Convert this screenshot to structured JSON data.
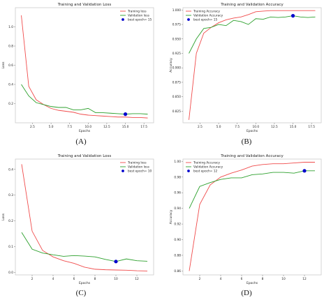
{
  "panel_labels": [
    "(A)",
    "(B)",
    "(C)",
    "(D)"
  ],
  "colors": {
    "train": "#f04b4b",
    "val": "#2ca02c",
    "best": "#0000cc",
    "frame": "#cccccc"
  },
  "chart_data": [
    {
      "type": "line",
      "title": "Training and Validation Loss",
      "xlabel": "Epochs",
      "ylabel": "Loss",
      "xlim": [
        0.2,
        18.8
      ],
      "ylim": [
        0.0,
        1.2
      ],
      "xticks": [
        2.5,
        5.0,
        7.5,
        10.0,
        12.5,
        15.0,
        17.5
      ],
      "xtick_labels": [
        "2.5",
        "5.0",
        "7.5",
        "10.0",
        "12.5",
        "15.0",
        "17.5"
      ],
      "yticks": [
        0.2,
        0.4,
        0.6,
        0.8,
        1.0
      ],
      "ytick_labels": [
        "0.2",
        "0.4",
        "0.6",
        "0.8",
        "1.0"
      ],
      "legend_position": "top-right",
      "x": [
        1,
        2,
        3,
        4,
        5,
        6,
        7,
        8,
        9,
        10,
        11,
        12,
        13,
        14,
        15,
        16,
        17,
        18
      ],
      "series": [
        {
          "name": "Training loss",
          "values": [
            1.12,
            0.38,
            0.24,
            0.19,
            0.15,
            0.13,
            0.12,
            0.11,
            0.09,
            0.08,
            0.075,
            0.07,
            0.065,
            0.06,
            0.06,
            0.055,
            0.055,
            0.05
          ]
        },
        {
          "name": "Validation loss",
          "values": [
            0.4,
            0.28,
            0.21,
            0.19,
            0.17,
            0.16,
            0.16,
            0.135,
            0.135,
            0.15,
            0.105,
            0.105,
            0.1,
            0.095,
            0.09,
            0.095,
            0.095,
            0.09
          ]
        }
      ],
      "best": {
        "label": "best epoch= 15",
        "x": 15,
        "y": 0.09
      }
    },
    {
      "type": "line",
      "title": "Training and Validation Accuracy",
      "xlabel": "Epochs",
      "ylabel": "Accuracy",
      "xlim": [
        0.2,
        18.8
      ],
      "ylim": [
        0.805,
        1.004
      ],
      "xticks": [
        2.5,
        5.0,
        7.5,
        10.0,
        12.5,
        15.0,
        17.5
      ],
      "xtick_labels": [
        "2.5",
        "5.0",
        "7.5",
        "10.0",
        "12.5",
        "15.0",
        "17.5"
      ],
      "yticks": [
        0.825,
        0.85,
        0.875,
        0.9,
        0.925,
        0.95,
        0.975,
        1.0
      ],
      "ytick_labels": [
        "0.825",
        "0.850",
        "0.875",
        "0.900",
        "0.925",
        "0.950",
        "0.975",
        "1.000"
      ],
      "legend_position": "top-left",
      "x": [
        1,
        2,
        3,
        4,
        5,
        6,
        7,
        8,
        9,
        10,
        11,
        12,
        13,
        14,
        15,
        16,
        17,
        18
      ],
      "series": [
        {
          "name": "Training Accuracy",
          "values": [
            0.81,
            0.925,
            0.96,
            0.97,
            0.978,
            0.983,
            0.986,
            0.988,
            0.992,
            0.997,
            0.998,
            0.999,
            0.999,
            0.999,
            0.999,
            0.999,
            0.999,
            0.999
          ]
        },
        {
          "name": "Validation Accuracy",
          "values": [
            0.925,
            0.95,
            0.968,
            0.97,
            0.975,
            0.973,
            0.982,
            0.98,
            0.975,
            0.985,
            0.984,
            0.988,
            0.987,
            0.988,
            0.99,
            0.988,
            0.987,
            0.988
          ]
        }
      ],
      "best": {
        "label": "best epoch= 15",
        "x": 15,
        "y": 0.99
      }
    },
    {
      "type": "line",
      "title": "Training and Validation Loss",
      "xlabel": "Epochs",
      "ylabel": "Loss",
      "xlim": [
        0.4,
        13.6
      ],
      "ylim": [
        -0.01,
        0.44
      ],
      "xticks": [
        2,
        4,
        6,
        8,
        10,
        12
      ],
      "xtick_labels": [
        "2",
        "4",
        "6",
        "8",
        "10",
        "12"
      ],
      "yticks": [
        0.0,
        0.1,
        0.2,
        0.3,
        0.4
      ],
      "ytick_labels": [
        "0.0",
        "0.1",
        "0.2",
        "0.3",
        "0.4"
      ],
      "legend_position": "top-right",
      "x": [
        1,
        2,
        3,
        4,
        5,
        6,
        7,
        8,
        9,
        10,
        11,
        12,
        13
      ],
      "series": [
        {
          "name": "Training loss",
          "values": [
            0.42,
            0.16,
            0.085,
            0.06,
            0.045,
            0.035,
            0.02,
            0.012,
            0.01,
            0.009,
            0.008,
            0.006,
            0.005
          ]
        },
        {
          "name": "Validation loss",
          "values": [
            0.155,
            0.09,
            0.075,
            0.068,
            0.062,
            0.065,
            0.063,
            0.06,
            0.05,
            0.042,
            0.052,
            0.045,
            0.043
          ]
        }
      ],
      "best": {
        "label": "best epoch= 10",
        "x": 10,
        "y": 0.042
      }
    },
    {
      "type": "line",
      "title": "Training and Validation Accuracy",
      "xlabel": "Epochs",
      "ylabel": "Accuracy",
      "xlim": [
        0.4,
        13.6
      ],
      "ylim": [
        0.855,
        1.003
      ],
      "xticks": [
        2,
        4,
        6,
        8,
        10,
        12
      ],
      "xtick_labels": [
        "2",
        "4",
        "6",
        "8",
        "10",
        "12"
      ],
      "yticks": [
        0.86,
        0.88,
        0.9,
        0.92,
        0.94,
        0.96,
        0.98,
        1.0
      ],
      "ytick_labels": [
        "0.86",
        "0.88",
        "0.90",
        "0.92",
        "0.94",
        "0.96",
        "0.98",
        "1.00"
      ],
      "legend_position": "top-left",
      "x": [
        1,
        2,
        3,
        4,
        5,
        6,
        7,
        8,
        9,
        10,
        11,
        12,
        13
      ],
      "series": [
        {
          "name": "Training Accuracy",
          "values": [
            0.86,
            0.945,
            0.97,
            0.98,
            0.985,
            0.989,
            0.994,
            0.996,
            0.997,
            0.997,
            0.998,
            0.999,
            0.999
          ]
        },
        {
          "name": "Validation Accuracy",
          "values": [
            0.94,
            0.968,
            0.973,
            0.977,
            0.979,
            0.979,
            0.983,
            0.984,
            0.986,
            0.986,
            0.985,
            0.988,
            0.988
          ]
        }
      ],
      "best": {
        "label": "best epoch= 12",
        "x": 12,
        "y": 0.988
      }
    }
  ]
}
